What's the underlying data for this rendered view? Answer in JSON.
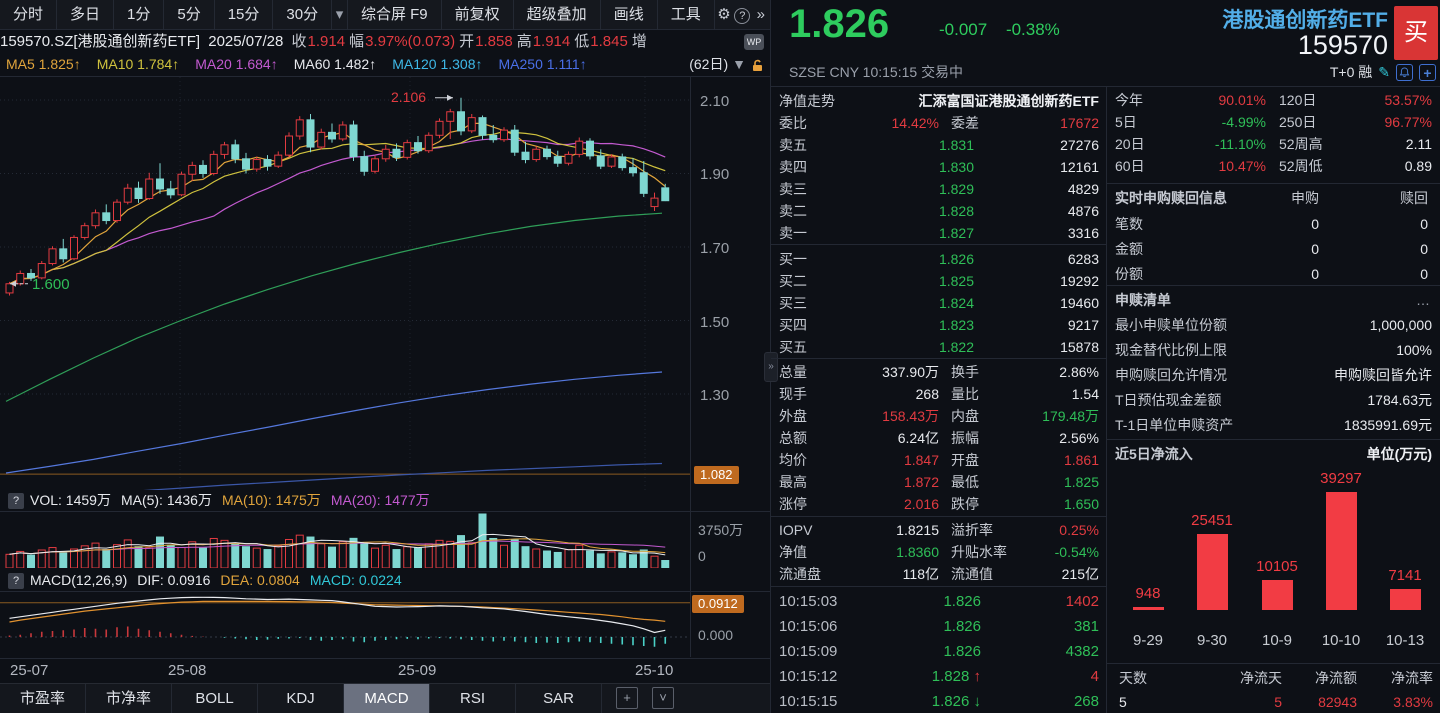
{
  "colors": {
    "red": "#e23b41",
    "green": "#2fbf58",
    "price_green": "#2ecc5e",
    "candle_cyan": "#7fd7d1",
    "cyan_text": "#31c8d8",
    "orange": "#e0a43c",
    "badge_orange": "#bf6a1f",
    "yellow": "#cfc23e",
    "magenta": "#c35ad0",
    "ma60_green": "#2f9e58",
    "ma120_blue": "#5578dd",
    "ma250_blue": "#3b57a8",
    "name_blue": "#52aee8",
    "buy_red": "#d93535",
    "flow_red": "#f23c44"
  },
  "toolbar": {
    "periods": [
      "分时",
      "多日",
      "1分",
      "5分",
      "15分",
      "30分"
    ],
    "period_caret": "▾",
    "right_buttons": [
      "综合屏 F9",
      "前复权",
      "超级叠加",
      "画线",
      "工具"
    ],
    "gear_icon": "⚙",
    "help_icon": "?",
    "more_icon": "»"
  },
  "info_row": {
    "symbol": "159570.SZ[港股通创新药ETF]",
    "date": "2025/07/28",
    "fields": [
      {
        "label": "收",
        "value": "1.914"
      },
      {
        "label": "幅",
        "value": "3.97%(0.073)"
      },
      {
        "label": "开",
        "value": "1.858"
      },
      {
        "label": "高",
        "value": "1.914"
      },
      {
        "label": "低",
        "value": "1.845"
      },
      {
        "label": "增",
        "value": ""
      }
    ],
    "wp_badge": "WP"
  },
  "ma_row": {
    "items": [
      {
        "label": "MA5",
        "value": "1.825↑",
        "color": "org"
      },
      {
        "label": "MA10",
        "value": "1.784↑",
        "color": "yel"
      },
      {
        "label": "MA20",
        "value": "1.684↑",
        "color": "mag"
      },
      {
        "label": "MA60",
        "value": "1.482↑",
        "color": "mgrn"
      },
      {
        "label": "MA120",
        "value": "1.308↑",
        "color": "sky"
      },
      {
        "label": "MA250",
        "value": "1.111↑",
        "color": "blu"
      }
    ],
    "right": "(62日)",
    "caret": "▼"
  },
  "left_chart": {
    "price_axis": [
      "2.10",
      "1.90",
      "1.70",
      "1.50",
      "1.30"
    ],
    "cost_badge": "1.082",
    "vol_axis_top": "3750万",
    "vol_axis_bottom": "0",
    "macd_badge": "0.0912",
    "macd_axis_zero": "0.000",
    "x_axis": [
      "25-07",
      "25-08",
      "25-09",
      "25-10"
    ],
    "high_annotation": "2.106",
    "low_annotation": "1.600"
  },
  "vol_header": {
    "help": "?",
    "items": [
      {
        "text": "VOL: 1459万",
        "color": "wht"
      },
      {
        "text": "MA(5): 1436万",
        "color": "wht"
      },
      {
        "text": "MA(10): 1475万",
        "color": "org"
      },
      {
        "text": "MA(20): 1477万",
        "color": "mag"
      }
    ]
  },
  "macd_header": {
    "help": "?",
    "items": [
      {
        "text": "MACD(12,26,9)",
        "color": "wht"
      },
      {
        "text": "DIF: 0.0916",
        "color": "wht"
      },
      {
        "text": "DEA: 0.0804",
        "color": "org"
      },
      {
        "text": "MACD: 0.0224",
        "color": "cyn"
      }
    ]
  },
  "bottom_tabs": {
    "tabs": [
      "市盈率",
      "市净率",
      "BOLL",
      "KDJ",
      "MACD",
      "RSI",
      "SAR"
    ],
    "active": "MACD",
    "add_icon": "+",
    "dropdown_icon": "˅"
  },
  "quote": {
    "price": "1.826",
    "change": "-0.007",
    "pct": "-0.38%",
    "name": "港股通创新药ETF",
    "code": "159570",
    "buy_label": "买",
    "exchange": "SZSE",
    "currency": "CNY",
    "time": "10:15:15",
    "status": "交易中",
    "t0": "T+0 融"
  },
  "order_book": {
    "fund_label": "净值走势",
    "fund_name": "汇添富国证港股通创新药ETF",
    "ratio_label": "委比",
    "ratio_value": "14.42%",
    "diff_label": "委差",
    "diff_value": "17672",
    "asks": [
      [
        "卖五",
        "1.831",
        "27276"
      ],
      [
        "卖四",
        "1.830",
        "12161"
      ],
      [
        "卖三",
        "1.829",
        "4829"
      ],
      [
        "卖二",
        "1.828",
        "4876"
      ],
      [
        "卖一",
        "1.827",
        "3316"
      ]
    ],
    "bids": [
      [
        "买一",
        "1.826",
        "6283"
      ],
      [
        "买二",
        "1.825",
        "19292"
      ],
      [
        "买三",
        "1.824",
        "19460"
      ],
      [
        "买四",
        "1.823",
        "9217"
      ],
      [
        "买五",
        "1.822",
        "15878"
      ]
    ]
  },
  "stats": {
    "rows": [
      [
        {
          "l": "总量",
          "v": "337.90万",
          "c": "wht"
        },
        {
          "l": "换手",
          "v": "2.86%",
          "c": "wht"
        }
      ],
      [
        {
          "l": "现手",
          "v": "268",
          "c": "wht"
        },
        {
          "l": "量比",
          "v": "1.54",
          "c": "wht"
        }
      ],
      [
        {
          "l": "外盘",
          "v": "158.43万",
          "c": "red"
        },
        {
          "l": "内盘",
          "v": "179.48万",
          "c": "grn"
        }
      ],
      [
        {
          "l": "总额",
          "v": "6.24亿",
          "c": "wht"
        },
        {
          "l": "振幅",
          "v": "2.56%",
          "c": "wht"
        }
      ],
      [
        {
          "l": "均价",
          "v": "1.847",
          "c": "red"
        },
        {
          "l": "开盘",
          "v": "1.861",
          "c": "red"
        }
      ],
      [
        {
          "l": "最高",
          "v": "1.872",
          "c": "red"
        },
        {
          "l": "最低",
          "v": "1.825",
          "c": "grn"
        }
      ],
      [
        {
          "l": "涨停",
          "v": "2.016",
          "c": "red"
        },
        {
          "l": "跌停",
          "v": "1.650",
          "c": "grn"
        }
      ]
    ],
    "iopv_rows": [
      [
        {
          "l": "IOPV",
          "v": "1.8215",
          "c": "wht"
        },
        {
          "l": "溢折率",
          "v": "0.25%",
          "c": "red"
        }
      ],
      [
        {
          "l": "净值",
          "v": "1.8360",
          "c": "grn"
        },
        {
          "l": "升贴水率",
          "v": "-0.54%",
          "c": "grn"
        }
      ],
      [
        {
          "l": "流通盘",
          "v": "118亿",
          "c": "wht"
        },
        {
          "l": "流通值",
          "v": "215亿",
          "c": "wht"
        }
      ]
    ]
  },
  "ticks": [
    {
      "time": "10:15:03",
      "price": "1.826",
      "dir": "",
      "vol": "1402",
      "vc": "red"
    },
    {
      "time": "10:15:06",
      "price": "1.826",
      "dir": "",
      "vol": "381",
      "vc": "grn"
    },
    {
      "time": "10:15:09",
      "price": "1.826",
      "dir": "",
      "vol": "4382",
      "vc": "grn"
    },
    {
      "time": "10:15:12",
      "price": "1.828",
      "dir": "↑",
      "dc": "red",
      "vol": "4",
      "vc": "red"
    },
    {
      "time": "10:15:15",
      "price": "1.826",
      "dir": "↓",
      "dc": "grn",
      "vol": "268",
      "vc": "grn"
    }
  ],
  "performance": {
    "rows": [
      [
        {
          "l": "今年",
          "v": "90.01%",
          "c": "red"
        },
        {
          "l": "120日",
          "v": "53.57%",
          "c": "red"
        }
      ],
      [
        {
          "l": "5日",
          "v": "-4.99%",
          "c": "grn"
        },
        {
          "l": "250日",
          "v": "96.77%",
          "c": "red"
        }
      ],
      [
        {
          "l": "20日",
          "v": "-11.10%",
          "c": "grn"
        },
        {
          "l": "52周高",
          "v": "2.11",
          "c": "wht"
        }
      ],
      [
        {
          "l": "60日",
          "v": "10.47%",
          "c": "red"
        },
        {
          "l": "52周低",
          "v": "0.89",
          "c": "wht"
        }
      ]
    ]
  },
  "subscription": {
    "title": "实时申购赎回信息",
    "col1": "申购",
    "col2": "赎回",
    "rows": [
      [
        "笔数",
        "0",
        "0"
      ],
      [
        "金额",
        "0",
        "0"
      ],
      [
        "份额",
        "0",
        "0"
      ]
    ]
  },
  "redemption": {
    "title": "申赎清单",
    "more": "…",
    "rows": [
      [
        "最小申赎单位份额",
        "1,000,000"
      ],
      [
        "现金替代比例上限",
        "100%"
      ],
      [
        "申购赎回允许情况",
        "申购赎回皆允许"
      ],
      [
        "T日预估现金差额",
        "1784.63元"
      ],
      [
        "T-1日单位申赎资产",
        "1835991.69元"
      ]
    ]
  },
  "netflow": {
    "title": "近5日净流入",
    "unit": "单位(万元)",
    "footer_labels": [
      "天数",
      "净流天",
      "净流额",
      "净流率"
    ],
    "footer_values": [
      {
        "v": "5",
        "c": "wht"
      },
      {
        "v": "5",
        "c": "red"
      },
      {
        "v": "82943",
        "c": "red"
      },
      {
        "v": "3.83%",
        "c": "red"
      }
    ]
  },
  "chart_data": [
    {
      "id": "main",
      "type": "candlestick",
      "title": "港股通创新药ETF 159570 日K",
      "y_ticks": [
        2.1,
        1.9,
        1.7,
        1.5,
        1.3
      ],
      "x_labels": [
        "25-07",
        "25-08",
        "25-09",
        "25-10"
      ],
      "high_label": 2.106,
      "low_label": 1.6,
      "cost_line": 1.082,
      "candles": [
        [
          1.575,
          1.605,
          1.568,
          1.6
        ],
        [
          1.6,
          1.636,
          1.595,
          1.628
        ],
        [
          1.628,
          1.64,
          1.608,
          1.616
        ],
        [
          1.616,
          1.662,
          1.612,
          1.655
        ],
        [
          1.655,
          1.702,
          1.65,
          1.695
        ],
        [
          1.695,
          1.722,
          1.658,
          1.668
        ],
        [
          1.668,
          1.732,
          1.664,
          1.726
        ],
        [
          1.726,
          1.766,
          1.72,
          1.758
        ],
        [
          1.758,
          1.802,
          1.75,
          1.793
        ],
        [
          1.793,
          1.816,
          1.762,
          1.772
        ],
        [
          1.772,
          1.83,
          1.766,
          1.822
        ],
        [
          1.822,
          1.872,
          1.816,
          1.86
        ],
        [
          1.86,
          1.878,
          1.82,
          1.832
        ],
        [
          1.832,
          1.902,
          1.828,
          1.885
        ],
        [
          1.885,
          1.928,
          1.845,
          1.858
        ],
        [
          1.858,
          1.88,
          1.832,
          1.842
        ],
        [
          1.842,
          1.905,
          1.838,
          1.898
        ],
        [
          1.898,
          1.932,
          1.88,
          1.922
        ],
        [
          1.922,
          1.936,
          1.888,
          1.9
        ],
        [
          1.9,
          1.962,
          1.895,
          1.952
        ],
        [
          1.952,
          1.986,
          1.94,
          1.978
        ],
        [
          1.978,
          1.992,
          1.928,
          1.94
        ],
        [
          1.94,
          1.956,
          1.9,
          1.912
        ],
        [
          1.912,
          1.946,
          1.905,
          1.938
        ],
        [
          1.938,
          1.95,
          1.908,
          1.92
        ],
        [
          1.92,
          1.96,
          1.915,
          1.95
        ],
        [
          1.95,
          2.012,
          1.944,
          2.002
        ],
        [
          2.002,
          2.056,
          1.992,
          2.046
        ],
        [
          2.046,
          2.062,
          1.958,
          1.972
        ],
        [
          1.972,
          2.022,
          1.965,
          2.012
        ],
        [
          2.012,
          2.036,
          1.984,
          1.994
        ],
        [
          1.994,
          2.042,
          1.988,
          2.032
        ],
        [
          2.032,
          2.044,
          1.934,
          1.946
        ],
        [
          1.946,
          1.962,
          1.894,
          1.906
        ],
        [
          1.906,
          1.948,
          1.9,
          1.94
        ],
        [
          1.94,
          1.978,
          1.932,
          1.966
        ],
        [
          1.966,
          1.982,
          1.934,
          1.944
        ],
        [
          1.944,
          1.992,
          1.938,
          1.984
        ],
        [
          1.984,
          2.002,
          1.954,
          1.962
        ],
        [
          1.962,
          2.012,
          1.956,
          2.004
        ],
        [
          2.004,
          2.05,
          1.996,
          2.042
        ],
        [
          2.042,
          2.076,
          1.994,
          2.068
        ],
        [
          2.068,
          2.106,
          2.004,
          2.016
        ],
        [
          2.016,
          2.062,
          2.01,
          2.052
        ],
        [
          2.052,
          2.058,
          1.992,
          2.004
        ],
        [
          2.004,
          2.032,
          1.984,
          1.992
        ],
        [
          1.992,
          2.026,
          1.986,
          2.018
        ],
        [
          2.018,
          2.032,
          1.948,
          1.958
        ],
        [
          1.958,
          1.986,
          1.928,
          1.938
        ],
        [
          1.938,
          1.974,
          1.932,
          1.966
        ],
        [
          1.966,
          1.976,
          1.938,
          1.946
        ],
        [
          1.946,
          1.962,
          1.918,
          1.928
        ],
        [
          1.928,
          1.96,
          1.922,
          1.952
        ],
        [
          1.952,
          1.998,
          1.944,
          1.988
        ],
        [
          1.988,
          1.996,
          1.938,
          1.948
        ],
        [
          1.948,
          1.966,
          1.912,
          1.92
        ],
        [
          1.92,
          1.952,
          1.915,
          1.945
        ],
        [
          1.945,
          1.954,
          1.908,
          1.916
        ],
        [
          1.916,
          1.942,
          1.892,
          1.902
        ],
        [
          1.902,
          1.934,
          1.836,
          1.846
        ],
        [
          1.81,
          1.848,
          1.798,
          1.833
        ],
        [
          1.861,
          1.872,
          1.825,
          1.826
        ]
      ],
      "ma60": [
        1.28,
        1.34,
        1.398,
        1.452,
        1.5,
        1.545,
        1.585,
        1.622,
        1.655,
        1.685,
        1.712,
        1.736,
        1.756,
        1.772,
        1.784,
        1.792
      ],
      "ma120": [
        1.085,
        1.103,
        1.122,
        1.144,
        1.165,
        1.188,
        1.21,
        1.233,
        1.255,
        1.276,
        1.295,
        1.312,
        1.327,
        1.34,
        1.351,
        1.36
      ],
      "ma250": [
        1.012,
        1.02,
        1.028,
        1.036,
        1.044,
        1.052,
        1.059,
        1.066,
        1.073,
        1.08,
        1.086,
        1.092,
        1.097,
        1.102,
        1.107,
        1.111
      ]
    },
    {
      "id": "volume",
      "type": "bar",
      "ylabel": "万",
      "axis_max": 3750,
      "values": [
        950,
        1150,
        900,
        1250,
        1420,
        1050,
        1320,
        1540,
        1730,
        1280,
        1620,
        1950,
        1480,
        1400,
        2150,
        1580,
        1420,
        1820,
        1380,
        2050,
        1920,
        1650,
        1480,
        1380,
        1280,
        1520,
        1980,
        2280,
        2150,
        1680,
        1450,
        1820,
        2060,
        1720,
        1380,
        1580,
        1280,
        1480,
        1380,
        1680,
        1920,
        1850,
        2250,
        1750,
        3750,
        2050,
        1580,
        1950,
        1480,
        1320,
        1180,
        1080,
        1280,
        1580,
        1180,
        980,
        1120,
        1050,
        920,
        1250,
        820,
        520
      ]
    },
    {
      "id": "macd",
      "type": "line",
      "badge": 0.0912,
      "zero": 0.0,
      "dif": [
        0.05,
        0.054,
        0.058,
        0.062,
        0.066,
        0.07,
        0.074,
        0.078,
        0.082,
        0.086,
        0.09,
        0.093,
        0.096,
        0.099,
        0.102,
        0.1035,
        0.105,
        0.1055,
        0.106,
        0.1055,
        0.105,
        0.1035,
        0.102,
        0.101,
        0.1,
        0.1005,
        0.101,
        0.1,
        0.099,
        0.098,
        0.097,
        0.0935,
        0.09,
        0.086,
        0.082,
        0.081,
        0.08,
        0.0805,
        0.081,
        0.082,
        0.083,
        0.0825,
        0.082,
        0.08,
        0.078,
        0.0765,
        0.075,
        0.0715,
        0.068,
        0.064,
        0.06,
        0.057,
        0.054,
        0.051,
        0.048,
        0.044,
        0.04,
        0.035,
        0.03,
        0.022,
        0.012,
        0.018
      ],
      "dea": [
        0.04,
        0.045,
        0.049,
        0.053,
        0.057,
        0.061,
        0.065,
        0.069,
        0.072,
        0.075,
        0.078,
        0.081,
        0.084,
        0.087,
        0.089,
        0.091,
        0.093,
        0.094,
        0.095,
        0.095,
        0.095,
        0.095,
        0.095,
        0.095,
        0.095,
        0.0948,
        0.0945,
        0.094,
        0.0935,
        0.093,
        0.092,
        0.0905,
        0.089,
        0.0875,
        0.086,
        0.0855,
        0.085,
        0.0845,
        0.084,
        0.0835,
        0.083,
        0.0825,
        0.082,
        0.081,
        0.08,
        0.0785,
        0.077,
        0.0755,
        0.074,
        0.072,
        0.07,
        0.068,
        0.066,
        0.064,
        0.062,
        0.06,
        0.057,
        0.054,
        0.05,
        0.047,
        0.045,
        0.042
      ],
      "hist": [
        0.004,
        0.006,
        0.01,
        0.014,
        0.016,
        0.018,
        0.02,
        0.024,
        0.022,
        0.02,
        0.026,
        0.028,
        0.022,
        0.018,
        0.014,
        0.01,
        0.006,
        0.003,
        0.001,
        0.0,
        -0.002,
        -0.004,
        -0.006,
        -0.008,
        -0.007,
        -0.005,
        -0.004,
        -0.003,
        -0.008,
        -0.01,
        -0.008,
        -0.006,
        -0.012,
        -0.014,
        -0.01,
        -0.008,
        -0.006,
        -0.005,
        -0.006,
        -0.004,
        -0.003,
        -0.004,
        -0.006,
        -0.008,
        -0.01,
        -0.012,
        -0.01,
        -0.012,
        -0.014,
        -0.016,
        -0.015,
        -0.016,
        -0.014,
        -0.012,
        -0.014,
        -0.016,
        -0.018,
        -0.02,
        -0.022,
        -0.024,
        -0.026,
        -0.018
      ]
    },
    {
      "id": "netflow",
      "type": "bar",
      "title": "近5日净流入",
      "ylabel": "万元",
      "categories": [
        "9-29",
        "9-30",
        "10-9",
        "10-10",
        "10-13"
      ],
      "values": [
        948,
        25451,
        10105,
        39297,
        7141
      ]
    }
  ]
}
